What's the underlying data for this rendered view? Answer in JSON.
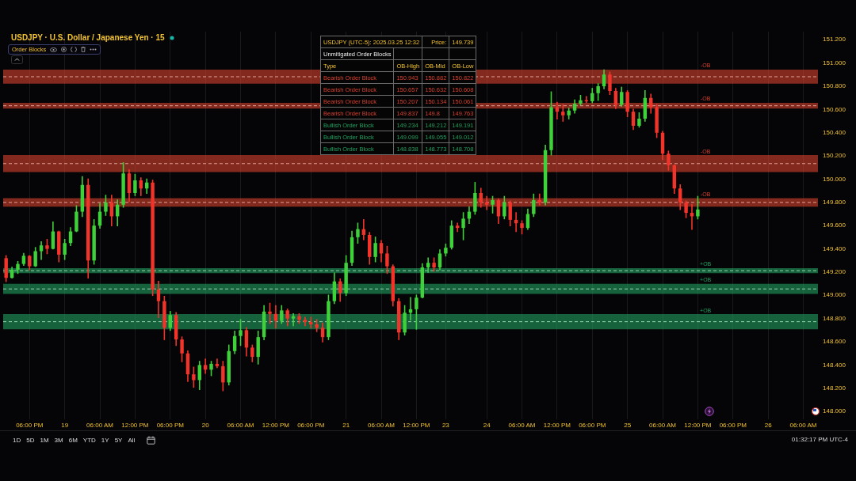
{
  "chart_data": {
    "type": "candlestick",
    "title": "USDJPY · U.S. Dollar / Japanese Yen · 15",
    "subtitle": "Order Blocks",
    "categories": [
      null,
      null,
      null,
      null,
      "06:00 PM",
      null,
      null,
      null,
      null,
      null,
      "19",
      null,
      null,
      null,
      null,
      null,
      "06:00 AM",
      null,
      null,
      null,
      null,
      null,
      "12:00 PM",
      null,
      null,
      null,
      null,
      null,
      "06:00 PM",
      null,
      null,
      null,
      null,
      null,
      "20",
      null,
      null,
      null,
      null,
      null,
      "06:00 AM",
      null,
      null,
      null,
      null,
      null,
      "12:00 PM",
      null,
      null,
      null,
      null,
      null,
      "06:00 PM",
      null,
      null,
      null,
      null,
      null,
      "21",
      null,
      null,
      null,
      null,
      null,
      "06:00 AM",
      null,
      null,
      null,
      null,
      null,
      "12:00 PM",
      null,
      null,
      null,
      null,
      "23",
      null,
      null,
      null,
      null,
      null,
      null,
      "24",
      null,
      null,
      null,
      null,
      null,
      "06:00 AM",
      null,
      null,
      null,
      null,
      null,
      "12:00 PM",
      null,
      null,
      null,
      null,
      null,
      "06:00 PM",
      null,
      null,
      null,
      null,
      null,
      "25",
      null,
      null,
      null,
      null,
      null,
      "06:00 AM",
      null,
      null,
      null,
      null,
      null,
      "12:00 PM",
      null,
      null,
      null,
      null,
      null,
      "06:00 PM",
      null,
      null,
      null,
      null,
      null,
      "26",
      null,
      null,
      null,
      null,
      null,
      "06:00 AM",
      null,
      null
    ],
    "ohlc": [
      [
        149.32,
        149.34,
        149.12,
        149.15
      ],
      [
        149.15,
        149.24,
        149.15,
        149.22
      ],
      [
        149.22,
        149.29,
        149.19,
        149.27
      ],
      [
        149.27,
        149.36,
        149.26,
        149.34
      ],
      [
        149.34,
        149.34,
        149.22,
        149.25
      ],
      [
        149.25,
        149.41,
        149.25,
        149.38
      ],
      [
        149.38,
        149.46,
        149.31,
        149.43
      ],
      [
        149.43,
        149.48,
        149.36,
        149.4
      ],
      [
        149.4,
        149.63,
        149.4,
        149.55
      ],
      [
        149.55,
        149.55,
        149.29,
        149.35
      ],
      [
        149.35,
        149.48,
        149.31,
        149.45
      ],
      [
        149.45,
        149.58,
        149.43,
        149.55
      ],
      [
        149.55,
        149.77,
        149.55,
        149.72
      ],
      [
        149.72,
        150.02,
        149.68,
        149.95
      ],
      [
        149.95,
        150.0,
        149.15,
        149.3
      ],
      [
        149.3,
        149.65,
        149.27,
        149.6
      ],
      [
        149.6,
        149.79,
        149.58,
        149.72
      ],
      [
        149.72,
        149.86,
        149.69,
        149.8
      ],
      [
        149.8,
        149.86,
        149.6,
        149.68
      ],
      [
        149.68,
        149.82,
        149.6,
        149.78
      ],
      [
        149.78,
        150.14,
        149.76,
        150.05
      ],
      [
        150.05,
        150.08,
        149.81,
        149.88
      ],
      [
        149.88,
        150.04,
        149.86,
        149.99
      ],
      [
        149.99,
        150.01,
        149.86,
        149.92
      ],
      [
        149.92,
        150.0,
        149.88,
        149.97
      ],
      [
        149.97,
        149.99,
        149.0,
        149.05
      ],
      [
        149.05,
        149.12,
        148.81,
        148.95
      ],
      [
        148.95,
        148.99,
        148.62,
        148.72
      ],
      [
        148.72,
        148.86,
        148.7,
        148.83
      ],
      [
        148.83,
        148.85,
        148.57,
        148.62
      ],
      [
        148.62,
        148.64,
        148.43,
        148.5
      ],
      [
        148.5,
        148.52,
        148.26,
        148.32
      ],
      [
        148.32,
        148.38,
        148.21,
        148.27
      ],
      [
        148.27,
        148.43,
        148.19,
        148.4
      ],
      [
        148.4,
        148.45,
        148.33,
        148.36
      ],
      [
        148.36,
        148.43,
        148.31,
        148.41
      ],
      [
        148.41,
        148.45,
        148.38,
        148.39
      ],
      [
        148.39,
        148.43,
        148.18,
        148.25
      ],
      [
        148.25,
        148.57,
        148.23,
        148.52
      ],
      [
        148.52,
        148.69,
        148.5,
        148.65
      ],
      [
        148.65,
        148.79,
        148.57,
        148.7
      ],
      [
        148.7,
        148.72,
        148.48,
        148.55
      ],
      [
        148.55,
        148.57,
        148.43,
        148.47
      ],
      [
        148.47,
        148.69,
        148.41,
        148.64
      ],
      [
        148.64,
        148.91,
        148.62,
        148.86
      ],
      [
        148.86,
        148.93,
        148.76,
        148.84
      ],
      [
        148.84,
        148.91,
        148.72,
        148.78
      ],
      [
        148.78,
        148.91,
        148.76,
        148.87
      ],
      [
        148.87,
        148.88,
        148.74,
        148.8
      ],
      [
        148.8,
        148.84,
        148.74,
        148.82
      ],
      [
        148.82,
        148.84,
        148.76,
        148.79
      ],
      [
        148.79,
        148.81,
        148.74,
        148.77
      ],
      [
        148.77,
        148.81,
        148.72,
        148.75
      ],
      [
        148.75,
        148.79,
        148.69,
        148.72
      ],
      [
        148.72,
        148.76,
        148.6,
        148.64
      ],
      [
        148.64,
        149.0,
        148.62,
        148.95
      ],
      [
        148.95,
        149.19,
        148.93,
        149.12
      ],
      [
        149.12,
        149.14,
        148.95,
        149.02
      ],
      [
        149.02,
        149.34,
        149.0,
        149.28
      ],
      [
        149.28,
        149.55,
        149.26,
        149.5
      ],
      [
        149.5,
        149.62,
        149.45,
        149.57
      ],
      [
        149.57,
        149.65,
        149.48,
        149.52
      ],
      [
        149.52,
        149.54,
        149.27,
        149.33
      ],
      [
        149.33,
        149.5,
        149.29,
        149.45
      ],
      [
        149.45,
        149.47,
        149.29,
        149.36
      ],
      [
        149.36,
        149.42,
        149.19,
        149.25
      ],
      [
        149.25,
        149.26,
        148.91,
        148.95
      ],
      [
        148.95,
        148.97,
        148.62,
        148.68
      ],
      [
        148.68,
        148.91,
        148.66,
        148.85
      ],
      [
        148.85,
        148.98,
        148.79,
        148.88
      ],
      [
        148.88,
        149.0,
        148.71,
        148.98
      ],
      [
        148.98,
        149.27,
        148.98,
        149.24
      ],
      [
        149.24,
        149.32,
        149.2,
        149.28
      ],
      [
        149.28,
        149.32,
        149.21,
        149.24
      ],
      [
        149.24,
        149.39,
        149.22,
        149.36
      ],
      [
        149.36,
        149.44,
        149.34,
        149.41
      ],
      [
        149.41,
        149.64,
        149.4,
        149.6
      ],
      [
        149.6,
        149.62,
        149.55,
        149.58
      ],
      [
        149.58,
        149.71,
        149.48,
        149.66
      ],
      [
        149.66,
        149.76,
        149.62,
        149.72
      ],
      [
        149.72,
        149.97,
        149.7,
        149.88
      ],
      [
        149.88,
        149.92,
        149.76,
        149.8
      ],
      [
        149.8,
        149.85,
        149.74,
        149.78
      ],
      [
        149.78,
        149.85,
        149.71,
        149.82
      ],
      [
        149.82,
        149.83,
        149.62,
        149.68
      ],
      [
        149.68,
        149.85,
        149.66,
        149.8
      ],
      [
        149.8,
        149.81,
        149.6,
        149.65
      ],
      [
        149.65,
        149.71,
        149.55,
        149.62
      ],
      [
        149.62,
        149.64,
        149.53,
        149.58
      ],
      [
        149.58,
        149.74,
        149.57,
        149.7
      ],
      [
        149.7,
        149.87,
        149.68,
        149.82
      ],
      [
        149.82,
        149.87,
        149.78,
        149.8
      ],
      [
        149.8,
        150.29,
        149.78,
        150.25
      ],
      [
        150.25,
        150.75,
        150.21,
        150.62
      ],
      [
        150.62,
        150.66,
        150.52,
        150.58
      ],
      [
        150.58,
        150.64,
        150.5,
        150.55
      ],
      [
        150.55,
        150.61,
        150.52,
        150.59
      ],
      [
        150.59,
        150.68,
        150.57,
        150.65
      ],
      [
        150.65,
        150.72,
        150.64,
        150.68
      ],
      [
        150.68,
        150.71,
        150.66,
        150.67
      ],
      [
        150.67,
        150.78,
        150.66,
        150.74
      ],
      [
        150.74,
        150.82,
        150.68,
        150.8
      ],
      [
        150.8,
        150.94,
        150.78,
        150.9
      ],
      [
        150.9,
        150.92,
        150.73,
        150.76
      ],
      [
        150.76,
        150.78,
        150.61,
        150.64
      ],
      [
        150.64,
        150.79,
        150.63,
        150.75
      ],
      [
        150.75,
        150.76,
        150.54,
        150.58
      ],
      [
        150.58,
        150.6,
        150.43,
        150.46
      ],
      [
        150.46,
        150.57,
        150.45,
        150.52
      ],
      [
        150.52,
        150.76,
        150.5,
        150.7
      ],
      [
        150.7,
        150.73,
        150.57,
        150.62
      ],
      [
        150.62,
        150.64,
        150.36,
        150.4
      ],
      [
        150.4,
        150.41,
        150.17,
        150.22
      ],
      [
        150.22,
        150.24,
        150.08,
        150.12
      ],
      [
        150.12,
        150.12,
        149.88,
        149.92
      ],
      [
        149.92,
        149.95,
        149.74,
        149.8
      ],
      [
        149.8,
        149.81,
        149.67,
        149.71
      ],
      [
        149.71,
        149.78,
        149.57,
        149.68
      ],
      [
        149.68,
        149.85,
        149.66,
        149.739
      ],
      null,
      null,
      null,
      null,
      null,
      null,
      null,
      null,
      null,
      null,
      null,
      null,
      null,
      null,
      null,
      null,
      null,
      null,
      null,
      null
    ],
    "ylim": [
      147.93,
      151.27
    ],
    "yticks": [
      {
        "value": 148,
        "label": "148.000"
      },
      {
        "value": 148.2,
        "label": "148.200"
      },
      {
        "value": 148.4,
        "label": "148.400"
      },
      {
        "value": 148.6,
        "label": "148.600"
      },
      {
        "value": 148.8,
        "label": "148.800"
      },
      {
        "value": 149,
        "label": "149.000"
      },
      {
        "value": 149.2,
        "label": "149.200"
      },
      {
        "value": 149.4,
        "label": "149.400"
      },
      {
        "value": 149.6,
        "label": "149.600"
      },
      {
        "value": 149.8,
        "label": "149.800"
      },
      {
        "value": 150,
        "label": "150.000"
      },
      {
        "value": 150.2,
        "label": "150.200"
      },
      {
        "value": 150.4,
        "label": "150.400"
      },
      {
        "value": 150.6,
        "label": "150.600"
      },
      {
        "value": 150.8,
        "label": "150.800"
      },
      {
        "value": 151,
        "label": "151.000"
      },
      {
        "value": 151.2,
        "label": "151.200"
      }
    ],
    "grid": "x",
    "bands": [
      {
        "axis": "y",
        "from": 150.822,
        "to": 150.943,
        "label": "-OB",
        "color": "#d9412e"
      },
      {
        "axis": "y",
        "from": 150.608,
        "to": 150.657,
        "label": "-OB",
        "color": "#d9412e"
      },
      {
        "axis": "y",
        "from": 150.061,
        "to": 150.207,
        "label": "-OB",
        "color": "#d9412e"
      },
      {
        "axis": "y",
        "from": 149.763,
        "to": 149.837,
        "label": "-OB",
        "color": "#d9412e"
      },
      {
        "axis": "y",
        "from": 149.191,
        "to": 149.234,
        "label": "+OB",
        "color": "#22a060"
      },
      {
        "axis": "y",
        "from": 149.012,
        "to": 149.099,
        "label": "+OB",
        "color": "#22a060"
      },
      {
        "axis": "y",
        "from": 148.708,
        "to": 148.838,
        "label": "+OB",
        "color": "#22a060"
      }
    ],
    "ref_lines": [
      {
        "axis": "y",
        "value": 150.882,
        "color": "#f5c4b8",
        "line_style": "dashed"
      },
      {
        "axis": "y",
        "value": 150.632,
        "color": "#f5c4b8",
        "line_style": "dashed"
      },
      {
        "axis": "y",
        "value": 150.134,
        "color": "#f5c4b8",
        "line_style": "dashed"
      },
      {
        "axis": "y",
        "value": 149.8,
        "color": "#f5c4b8",
        "line_style": "dashed"
      },
      {
        "axis": "y",
        "value": 149.212,
        "color": "#b8f0cc",
        "line_style": "dashed"
      },
      {
        "axis": "y",
        "value": 149.055,
        "color": "#b8f0cc",
        "line_style": "dashed"
      },
      {
        "axis": "y",
        "value": 148.773,
        "color": "#b8f0cc",
        "line_style": "dashed"
      }
    ],
    "annotations": [
      "USDJPY   (UTC-5): 2025.03.25 12:32",
      "Price:",
      "149.739",
      "Unmitigated Order Blocks",
      "Type",
      "OB-High",
      "OB-Mid",
      "OB-Low",
      "Bearish Order Block",
      "150.943",
      "150.882",
      "150.822",
      "Bearish Order Block",
      "150.657",
      "150.632",
      "150.608",
      "Bearish Order Block",
      "150.207",
      "150.134",
      "150.061",
      "Bearish Order Block",
      "149.837",
      "149.8",
      "149.763",
      "Bullish Order Block",
      "149.234",
      "149.212",
      "149.191",
      "Bullish Order Block",
      "149.099",
      "149.055",
      "149.012",
      "Bullish Order Block",
      "148.838",
      "148.773",
      "148.708",
      "1D",
      "5D",
      "1M",
      "3M",
      "6M",
      "YTD",
      "1Y",
      "5Y",
      "All",
      "01:32:17 PM UTC-4"
    ]
  }
}
